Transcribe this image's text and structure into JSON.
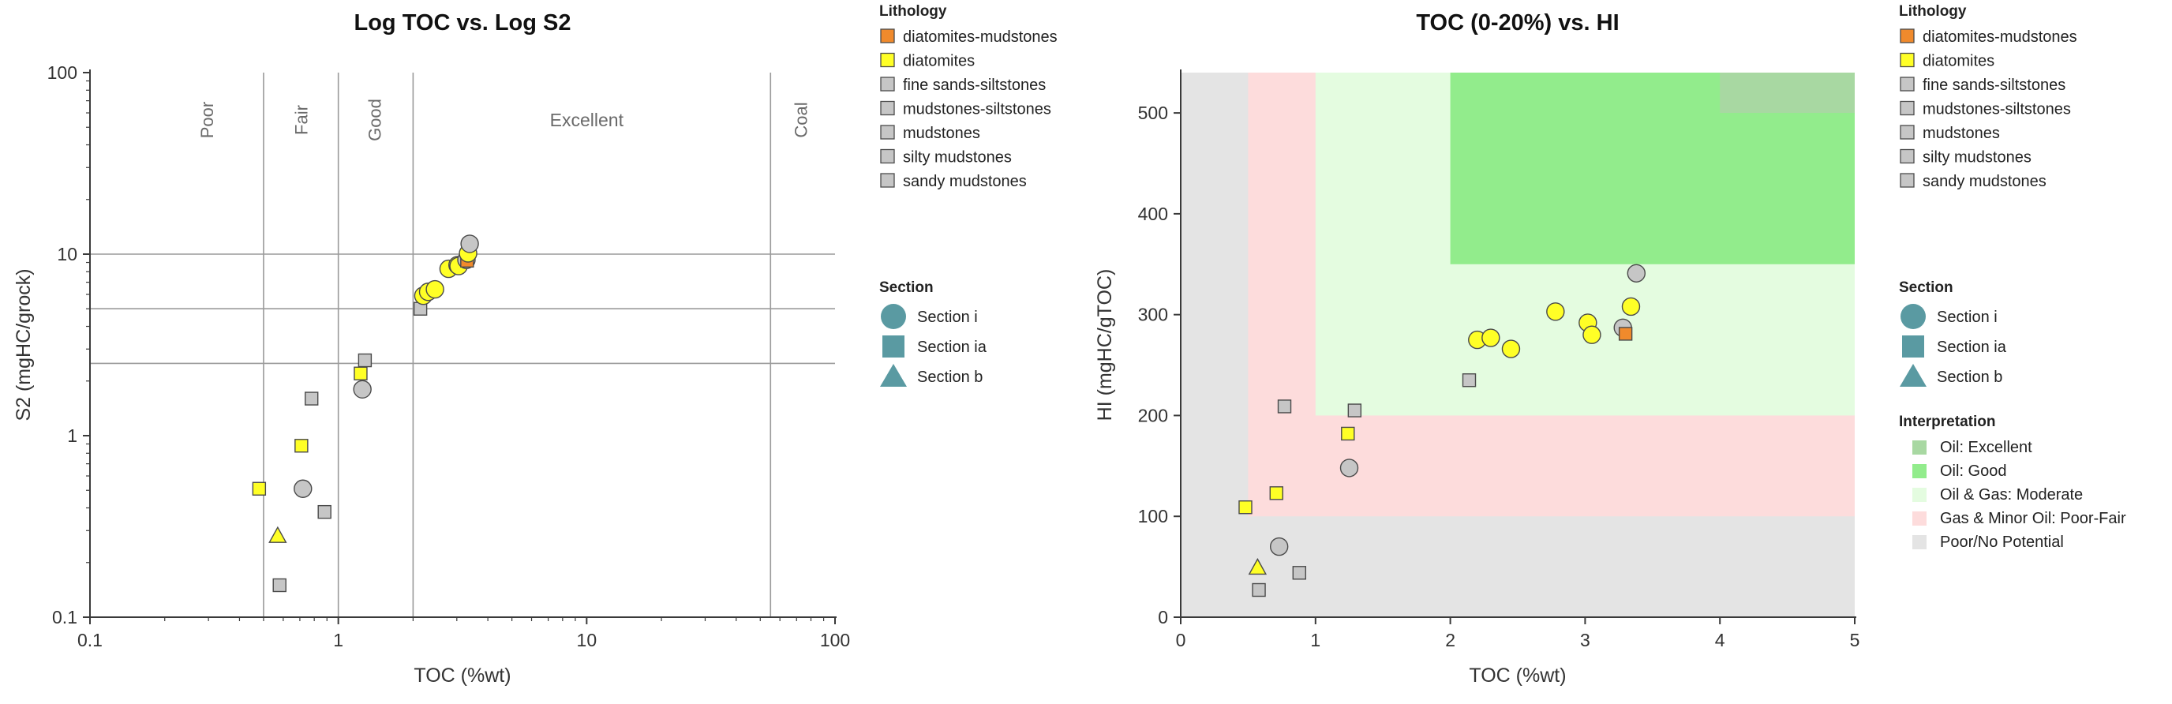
{
  "chart_data": [
    {
      "type": "scatter",
      "title": "Log TOC vs. Log S2",
      "xlabel": "TOC (%wt)",
      "ylabel": "S2 (mgHC/grock)",
      "xscale": "log",
      "yscale": "log",
      "xlim": [
        0.1,
        100
      ],
      "ylim": [
        0.1,
        100
      ],
      "xticks": [
        {
          "value": 0.1,
          "label": "0.1"
        },
        {
          "value": 1,
          "label": "1"
        },
        {
          "value": 10,
          "label": "10"
        },
        {
          "value": 100,
          "label": "100"
        }
      ],
      "yticks": [
        {
          "value": 0.1,
          "label": "0.1"
        },
        {
          "value": 1,
          "label": "1"
        },
        {
          "value": 10,
          "label": "10"
        },
        {
          "value": 100,
          "label": "100"
        }
      ],
      "vlines": [
        0.5,
        1,
        2,
        55
      ],
      "hlines": [
        2.5,
        5,
        10
      ],
      "zone_labels": [
        {
          "text": "Poor",
          "x": 0.3,
          "vertical": true
        },
        {
          "text": "Fair",
          "x": 0.72,
          "vertical": true
        },
        {
          "text": "Good",
          "x": 1.42,
          "vertical": true
        },
        {
          "text": "Excellent",
          "x": 10,
          "vertical": false
        },
        {
          "text": "Coal",
          "x": 74,
          "vertical": true
        }
      ],
      "points": [
        {
          "x": 0.48,
          "y": 0.51,
          "lith": "diatomites",
          "section": "Section ia"
        },
        {
          "x": 0.57,
          "y": 0.28,
          "lith": "diatomites",
          "section": "Section b"
        },
        {
          "x": 0.58,
          "y": 0.15,
          "lith": "mudstones",
          "section": "Section ia"
        },
        {
          "x": 0.71,
          "y": 0.88,
          "lith": "diatomites",
          "section": "Section ia"
        },
        {
          "x": 0.72,
          "y": 0.51,
          "lith": "mudstones",
          "section": "Section i"
        },
        {
          "x": 0.78,
          "y": 1.6,
          "lith": "mudstones",
          "section": "Section ia"
        },
        {
          "x": 0.88,
          "y": 0.38,
          "lith": "mudstones",
          "section": "Section ia"
        },
        {
          "x": 1.23,
          "y": 2.2,
          "lith": "diatomites",
          "section": "Section ia"
        },
        {
          "x": 1.25,
          "y": 1.8,
          "lith": "mudstones",
          "section": "Section i"
        },
        {
          "x": 1.28,
          "y": 2.6,
          "lith": "mudstones",
          "section": "Section ia"
        },
        {
          "x": 2.14,
          "y": 5.0,
          "lith": "mudstones",
          "section": "Section ia"
        },
        {
          "x": 2.2,
          "y": 5.9,
          "lith": "diatomites",
          "section": "Section i"
        },
        {
          "x": 2.3,
          "y": 6.2,
          "lith": "diatomites",
          "section": "Section i"
        },
        {
          "x": 2.45,
          "y": 6.4,
          "lith": "diatomites",
          "section": "Section i"
        },
        {
          "x": 2.78,
          "y": 8.3,
          "lith": "diatomites",
          "section": "Section i"
        },
        {
          "x": 3.02,
          "y": 8.7,
          "lith": "diatomites",
          "section": "Section i"
        },
        {
          "x": 3.05,
          "y": 8.6,
          "lith": "diatomites",
          "section": "Section i"
        },
        {
          "x": 3.28,
          "y": 9.3,
          "lith": "mudstones",
          "section": "Section i"
        },
        {
          "x": 3.3,
          "y": 9.2,
          "lith": "diatomites-mudstones",
          "section": "Section ia"
        },
        {
          "x": 3.33,
          "y": 10.1,
          "lith": "diatomites",
          "section": "Section i"
        },
        {
          "x": 3.38,
          "y": 11.4,
          "lith": "mudstones",
          "section": "Section i"
        }
      ]
    },
    {
      "type": "scatter",
      "title": "TOC (0-20%) vs. HI",
      "xlabel": "TOC (%wt)",
      "ylabel": "HI (mgHC/gTOC)",
      "xscale": "linear",
      "yscale": "linear",
      "xlim": [
        0,
        5
      ],
      "ylim": [
        0,
        540
      ],
      "xticks": [
        {
          "value": 0,
          "label": "0"
        },
        {
          "value": 1,
          "label": "1"
        },
        {
          "value": 2,
          "label": "2"
        },
        {
          "value": 3,
          "label": "3"
        },
        {
          "value": 4,
          "label": "4"
        },
        {
          "value": 5,
          "label": "5"
        }
      ],
      "yticks": [
        {
          "value": 0,
          "label": "0"
        },
        {
          "value": 100,
          "label": "100"
        },
        {
          "value": 200,
          "label": "200"
        },
        {
          "value": 300,
          "label": "300"
        },
        {
          "value": 400,
          "label": "400"
        },
        {
          "value": 500,
          "label": "500"
        }
      ],
      "zones": [
        {
          "name": "poor",
          "x": [
            0,
            5
          ],
          "y": [
            0,
            540
          ]
        },
        {
          "name": "fair",
          "x": [
            0.5,
            5
          ],
          "y": [
            100,
            540
          ]
        },
        {
          "name": "moderate",
          "x": [
            1,
            5
          ],
          "y": [
            200,
            540
          ]
        },
        {
          "name": "good",
          "x": [
            2,
            5
          ],
          "y": [
            350,
            540
          ]
        },
        {
          "name": "excellent",
          "x": [
            4,
            5
          ],
          "y": [
            500,
            540
          ]
        }
      ],
      "points": [
        {
          "x": 0.48,
          "y": 109,
          "lith": "diatomites",
          "section": "Section ia"
        },
        {
          "x": 0.57,
          "y": 49,
          "lith": "diatomites",
          "section": "Section b"
        },
        {
          "x": 0.58,
          "y": 27,
          "lith": "mudstones",
          "section": "Section ia"
        },
        {
          "x": 0.71,
          "y": 123,
          "lith": "diatomites",
          "section": "Section ia"
        },
        {
          "x": 0.73,
          "y": 70,
          "lith": "mudstones",
          "section": "Section i"
        },
        {
          "x": 0.77,
          "y": 209,
          "lith": "mudstones",
          "section": "Section ia"
        },
        {
          "x": 0.88,
          "y": 44,
          "lith": "mudstones",
          "section": "Section ia"
        },
        {
          "x": 1.24,
          "y": 182,
          "lith": "diatomites",
          "section": "Section ia"
        },
        {
          "x": 1.25,
          "y": 148,
          "lith": "mudstones",
          "section": "Section i"
        },
        {
          "x": 1.29,
          "y": 205,
          "lith": "mudstones",
          "section": "Section ia"
        },
        {
          "x": 2.14,
          "y": 235,
          "lith": "mudstones",
          "section": "Section ia"
        },
        {
          "x": 2.2,
          "y": 275,
          "lith": "diatomites",
          "section": "Section i"
        },
        {
          "x": 2.3,
          "y": 277,
          "lith": "diatomites",
          "section": "Section i"
        },
        {
          "x": 2.45,
          "y": 266,
          "lith": "diatomites",
          "section": "Section i"
        },
        {
          "x": 2.78,
          "y": 303,
          "lith": "diatomites",
          "section": "Section i"
        },
        {
          "x": 3.02,
          "y": 292,
          "lith": "diatomites",
          "section": "Section i"
        },
        {
          "x": 3.05,
          "y": 280,
          "lith": "diatomites",
          "section": "Section i"
        },
        {
          "x": 3.28,
          "y": 287,
          "lith": "mudstones",
          "section": "Section i"
        },
        {
          "x": 3.3,
          "y": 281,
          "lith": "diatomites-mudstones",
          "section": "Section ia"
        },
        {
          "x": 3.34,
          "y": 308,
          "lith": "diatomites",
          "section": "Section i"
        },
        {
          "x": 3.38,
          "y": 341,
          "lith": "mudstones",
          "section": "Section i"
        }
      ]
    }
  ],
  "lithology": {
    "title": "Lithology",
    "items": [
      {
        "key": "diatomites-mudstones",
        "label": "diatomites-mudstones",
        "color": "#f08a2c"
      },
      {
        "key": "diatomites",
        "label": "diatomites",
        "color": "#ffff26"
      },
      {
        "key": "fine sands-siltstones",
        "label": "fine sands-siltstones",
        "color": "#c6c6c6"
      },
      {
        "key": "mudstones-siltstones",
        "label": "mudstones-siltstones",
        "color": "#c6c6c6"
      },
      {
        "key": "mudstones",
        "label": "mudstones",
        "color": "#c6c6c6"
      },
      {
        "key": "silty mudstones",
        "label": "silty mudstones",
        "color": "#c6c6c6"
      },
      {
        "key": "sandy mudstones",
        "label": "sandy mudstones",
        "color": "#c6c6c6"
      }
    ]
  },
  "section_legend": {
    "title": "Section",
    "items": [
      {
        "label": "Section i",
        "shape": "circle"
      },
      {
        "label": "Section ia",
        "shape": "square"
      },
      {
        "label": "Section b",
        "shape": "triangle"
      }
    ],
    "color": "#5a9aa2"
  },
  "interpretation": {
    "title": "Interpretation",
    "items": [
      {
        "key": "excellent",
        "label": "Oil: Excellent",
        "color": "#a8d8a2"
      },
      {
        "key": "good",
        "label": "Oil: Good",
        "color": "#92ec8c"
      },
      {
        "key": "moderate",
        "label": "Oil & Gas: Moderate",
        "color": "#e4fce0"
      },
      {
        "key": "fair",
        "label": "Gas & Minor Oil: Poor-Fair",
        "color": "#fddcdc"
      },
      {
        "key": "poor",
        "label": "Poor/No Potential",
        "color": "#e4e4e4"
      }
    ]
  },
  "colors": {
    "axis": "#3a3a3a",
    "grid": "#9a9a9a",
    "marker_stroke": "#4a4a4a",
    "text": "#333333",
    "zone_text": "#6a6a6a"
  }
}
